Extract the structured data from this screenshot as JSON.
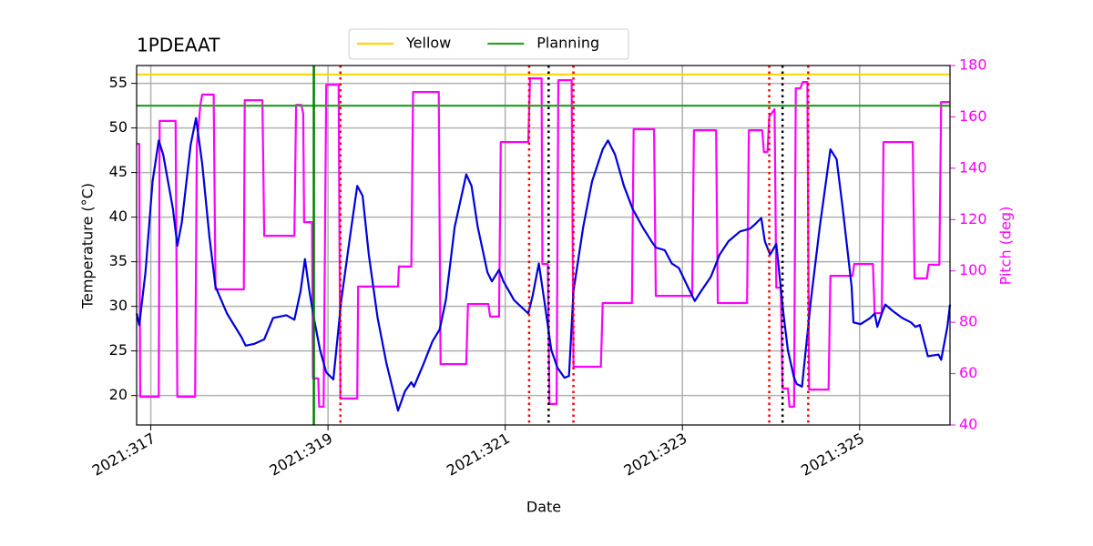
{
  "chart_data": {
    "type": "line",
    "title": "1PDEAAT",
    "xlabel": "Date",
    "ylabel": "Temperature (°C)",
    "y2label": "Pitch (deg)",
    "grid": true,
    "xlim": [
      316.84,
      326.02
    ],
    "xticks": [
      {
        "value": 317,
        "label": "2021:317"
      },
      {
        "value": 319,
        "label": "2021:319"
      },
      {
        "value": 321,
        "label": "2021:321"
      },
      {
        "value": 323,
        "label": "2021:323"
      },
      {
        "value": 325,
        "label": "2021:325"
      }
    ],
    "ylim": [
      16.7,
      57.0
    ],
    "yticks": [
      20,
      25,
      30,
      35,
      40,
      45,
      50,
      55
    ],
    "y2lim": [
      40,
      180
    ],
    "y2ticks": [
      40,
      60,
      80,
      100,
      120,
      140,
      160,
      180
    ],
    "y2color": "#ff00ff",
    "legend": "upper center",
    "hlines": [
      {
        "name": "Yellow",
        "value": 56,
        "color": "#ffd700"
      },
      {
        "name": "Planning",
        "value": 52.5,
        "color": "#2ca02c"
      }
    ],
    "vlines": [
      {
        "x": 318.84,
        "color": "#008000",
        "style": "solid"
      },
      {
        "x": 319.14,
        "color": "#ff0000",
        "style": "dotted"
      },
      {
        "x": 321.27,
        "color": "#ff0000",
        "style": "dotted"
      },
      {
        "x": 321.77,
        "color": "#ff0000",
        "style": "dotted"
      },
      {
        "x": 323.98,
        "color": "#ff0000",
        "style": "dotted"
      },
      {
        "x": 324.42,
        "color": "#ff0000",
        "style": "dotted"
      },
      {
        "x": 321.49,
        "color": "#000000",
        "style": "dotted"
      },
      {
        "x": 324.13,
        "color": "#000000",
        "style": "dotted"
      }
    ],
    "series": [
      {
        "color": "#ff00ff",
        "axis": "y2",
        "x": [
          316.84,
          316.87,
          316.88,
          317.09,
          317.1,
          317.28,
          317.3,
          317.5,
          317.52,
          317.56,
          317.58,
          317.71,
          317.73,
          318.05,
          318.06,
          318.26,
          318.28,
          318.62,
          318.64,
          318.7,
          318.72,
          318.73,
          318.82,
          318.83,
          318.89,
          318.9,
          318.95,
          318.98,
          319.12,
          319.14,
          319.33,
          319.34,
          319.79,
          319.8,
          319.94,
          319.96,
          320.25,
          320.27,
          320.56,
          320.58,
          320.81,
          320.83,
          320.93,
          320.95,
          321.26,
          321.28,
          321.41,
          321.42,
          321.48,
          321.5,
          321.58,
          321.6,
          321.75,
          321.77,
          322.08,
          322.1,
          322.43,
          322.45,
          322.68,
          322.7,
          323.11,
          323.13,
          323.38,
          323.4,
          323.73,
          323.75,
          323.9,
          323.92,
          323.96,
          323.98,
          324.04,
          324.06,
          324.11,
          324.13,
          324.19,
          324.21,
          324.26,
          324.28,
          324.33,
          324.36,
          324.41,
          324.43,
          324.65,
          324.67,
          324.92,
          324.94,
          325.15,
          325.17,
          325.25,
          325.27,
          325.6,
          325.62,
          325.76,
          325.78,
          325.9,
          325.92,
          326.02
        ],
        "values": [
          149.5,
          149.5,
          51.0,
          51.0,
          158.4,
          158.4,
          51.0,
          51.0,
          148.8,
          164.7,
          168.7,
          168.7,
          92.8,
          92.8,
          166.5,
          166.5,
          113.7,
          113.7,
          164.7,
          164.7,
          161.2,
          119.0,
          119.0,
          58.1,
          58.1,
          47.1,
          47.1,
          172.5,
          172.5,
          50.3,
          50.3,
          93.9,
          93.9,
          101.7,
          101.7,
          169.7,
          169.7,
          63.7,
          63.7,
          87.1,
          87.1,
          82.2,
          82.2,
          150.2,
          150.2,
          175.0,
          175.0,
          102.7,
          102.7,
          48.2,
          48.2,
          174.3,
          174.3,
          62.7,
          62.7,
          87.5,
          87.5,
          155.2,
          155.2,
          90.3,
          90.3,
          154.8,
          154.8,
          87.5,
          87.5,
          154.8,
          154.8,
          146.3,
          146.3,
          160.1,
          163.0,
          93.5,
          93.5,
          54.2,
          54.2,
          47.1,
          47.1,
          171.1,
          171.1,
          173.6,
          173.6,
          53.8,
          53.8,
          98.1,
          98.1,
          102.7,
          102.7,
          83.6,
          83.6,
          150.2,
          150.2,
          97.1,
          97.1,
          102.4,
          102.4,
          165.8,
          165.8
        ]
      },
      {
        "color": "#0000dd",
        "axis": "y",
        "x": [
          316.84,
          316.87,
          316.94,
          317.02,
          317.09,
          317.14,
          317.25,
          317.3,
          317.35,
          317.45,
          317.51,
          317.58,
          317.66,
          317.73,
          317.86,
          318.02,
          318.07,
          318.17,
          318.28,
          318.38,
          318.53,
          318.62,
          318.69,
          318.74,
          318.79,
          318.84,
          318.91,
          318.98,
          319.06,
          319.15,
          319.25,
          319.33,
          319.39,
          319.46,
          319.56,
          319.66,
          319.79,
          319.87,
          319.94,
          319.97,
          320.08,
          320.18,
          320.26,
          320.33,
          320.43,
          320.56,
          320.62,
          320.69,
          320.8,
          320.85,
          320.93,
          320.98,
          321.1,
          321.26,
          321.31,
          321.38,
          321.44,
          321.52,
          321.59,
          321.67,
          321.72,
          321.77,
          321.88,
          321.98,
          322.1,
          322.16,
          322.24,
          322.34,
          322.44,
          322.55,
          322.65,
          322.7,
          322.8,
          322.88,
          322.96,
          323.06,
          323.14,
          323.21,
          323.32,
          323.42,
          323.52,
          323.65,
          323.76,
          323.81,
          323.89,
          323.93,
          323.99,
          324.06,
          324.14,
          324.19,
          324.26,
          324.29,
          324.35,
          324.45,
          324.55,
          324.67,
          324.74,
          324.81,
          324.91,
          324.93,
          325.01,
          325.12,
          325.17,
          325.2,
          325.25,
          325.29,
          325.37,
          325.48,
          325.58,
          325.63,
          325.68,
          325.77,
          325.89,
          325.92,
          325.99,
          326.02
        ],
        "values": [
          29.2,
          27.9,
          33.8,
          44.0,
          48.6,
          47.0,
          40.9,
          36.8,
          39.4,
          48.1,
          51.1,
          46.0,
          37.9,
          32.2,
          29.2,
          26.6,
          25.6,
          25.8,
          26.3,
          28.7,
          29.0,
          28.5,
          31.7,
          35.3,
          31.7,
          28.7,
          25.1,
          22.6,
          21.8,
          30.7,
          37.9,
          43.5,
          42.4,
          35.8,
          28.7,
          23.6,
          18.3,
          20.5,
          21.5,
          21.0,
          23.6,
          26.1,
          27.4,
          30.7,
          38.9,
          44.8,
          43.5,
          38.9,
          33.8,
          32.8,
          34.1,
          32.8,
          30.7,
          29.2,
          31.2,
          34.8,
          30.7,
          25.1,
          23.1,
          22.0,
          22.2,
          31.7,
          38.9,
          44.0,
          47.6,
          48.6,
          47.0,
          43.5,
          40.9,
          38.9,
          37.3,
          36.6,
          36.3,
          34.8,
          34.3,
          32.2,
          30.6,
          31.7,
          33.3,
          35.8,
          37.3,
          38.4,
          38.7,
          39.1,
          39.9,
          37.3,
          35.8,
          37.0,
          29.2,
          25.1,
          22.0,
          21.3,
          21.0,
          30.7,
          38.9,
          47.6,
          46.5,
          40.9,
          32.2,
          28.2,
          28.0,
          28.7,
          29.2,
          27.7,
          29.2,
          30.2,
          29.5,
          28.7,
          28.2,
          27.7,
          27.9,
          24.4,
          24.6,
          24.0,
          27.7,
          30.2
        ]
      }
    ]
  }
}
